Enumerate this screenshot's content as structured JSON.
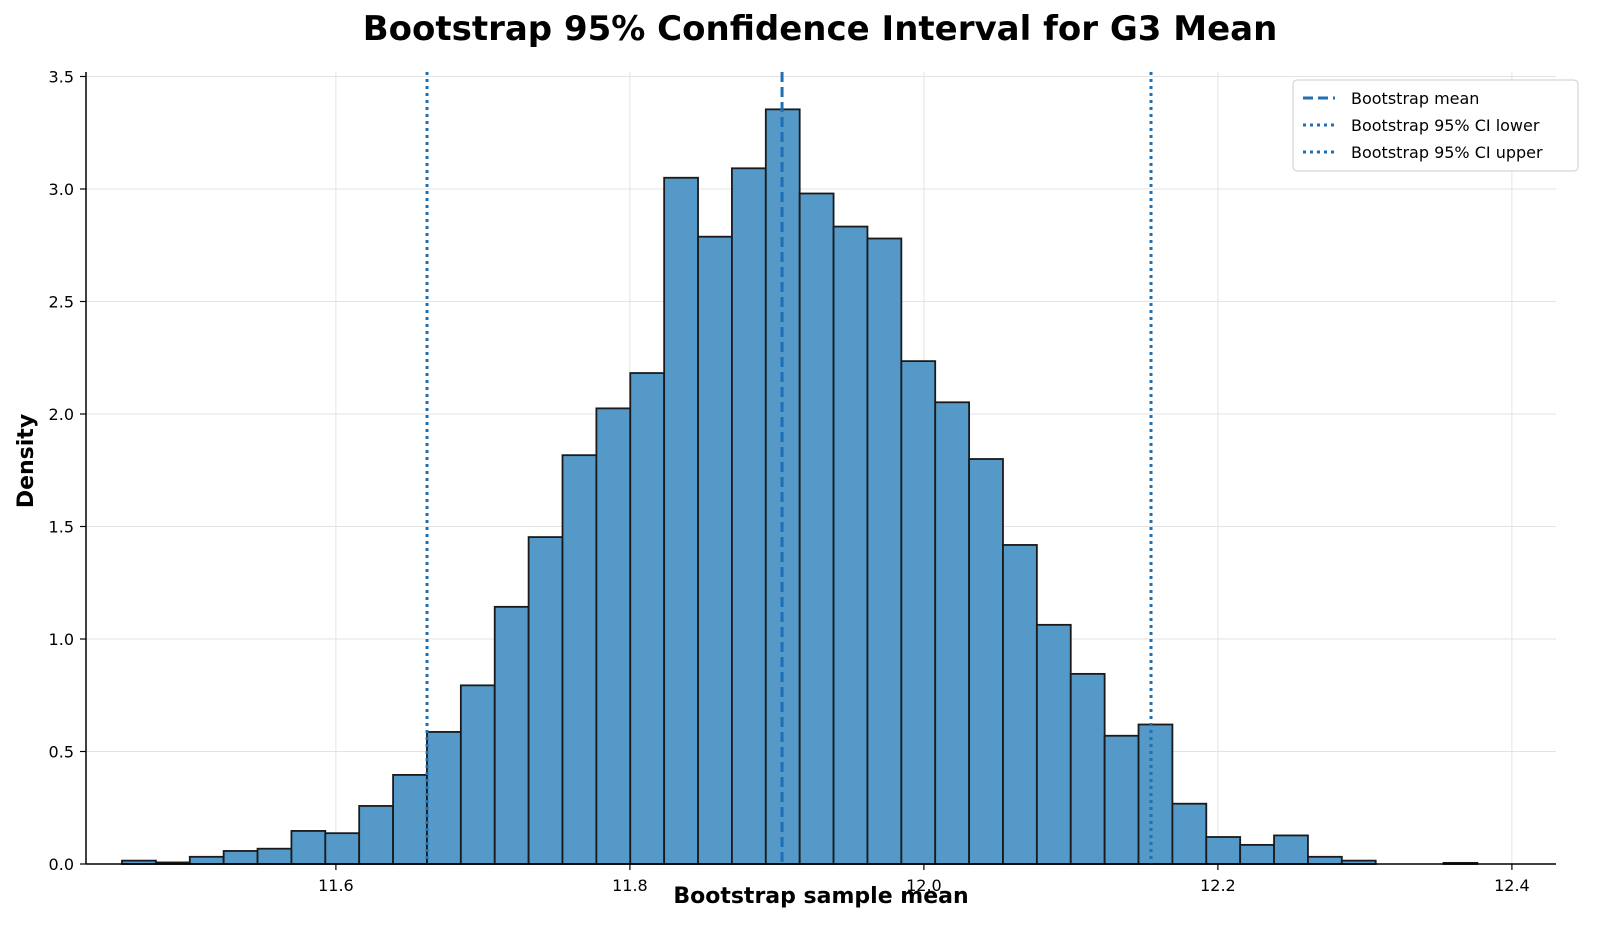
{
  "chart_data": {
    "type": "bar",
    "title": "Bootstrap 95% Confidence Interval for G3 Mean",
    "xlabel": "Bootstrap sample mean",
    "ylabel": "Density",
    "xlim": [
      11.43,
      12.43
    ],
    "ylim": [
      0,
      3.52
    ],
    "xticks": [
      11.6,
      11.8,
      12.0,
      12.2,
      12.4
    ],
    "xtick_labels": [
      "11.6",
      "11.8",
      "12.0",
      "12.2",
      "12.4"
    ],
    "yticks": [
      0,
      0.5,
      1.0,
      1.5,
      2.0,
      2.5,
      3.0,
      3.5
    ],
    "ytick_labels": [
      "0.0",
      "0.5",
      "1.0",
      "1.5",
      "2.0",
      "2.5",
      "3.0",
      "3.5"
    ],
    "grid": true,
    "legend_position": "top-right",
    "bar_color": "#5599c8",
    "bar_edge_color": "#1a1a1a",
    "line_color": "#1f6fb5",
    "bins": {
      "start": 11.4545,
      "width": 0.02305,
      "values": [
        0.015,
        0.007,
        0.032,
        0.058,
        0.068,
        0.147,
        0.137,
        0.258,
        0.396,
        0.587,
        0.794,
        1.143,
        1.453,
        1.817,
        2.025,
        2.182,
        3.05,
        2.788,
        3.092,
        3.354,
        2.98,
        2.833,
        2.78,
        2.235,
        2.052,
        1.8,
        1.418,
        1.063,
        0.845,
        0.57,
        0.62,
        0.268,
        0.12,
        0.085,
        0.127,
        0.032,
        0.015,
        0.0,
        0.0,
        0.005
      ]
    },
    "lines": [
      {
        "name": "Bootstrap mean",
        "x": 11.9035,
        "style": "dashed"
      },
      {
        "name": "Bootstrap 95% CI lower",
        "x": 11.662,
        "style": "dotted"
      },
      {
        "name": "Bootstrap 95% CI upper",
        "x": 12.1545,
        "style": "dotted"
      }
    ]
  }
}
